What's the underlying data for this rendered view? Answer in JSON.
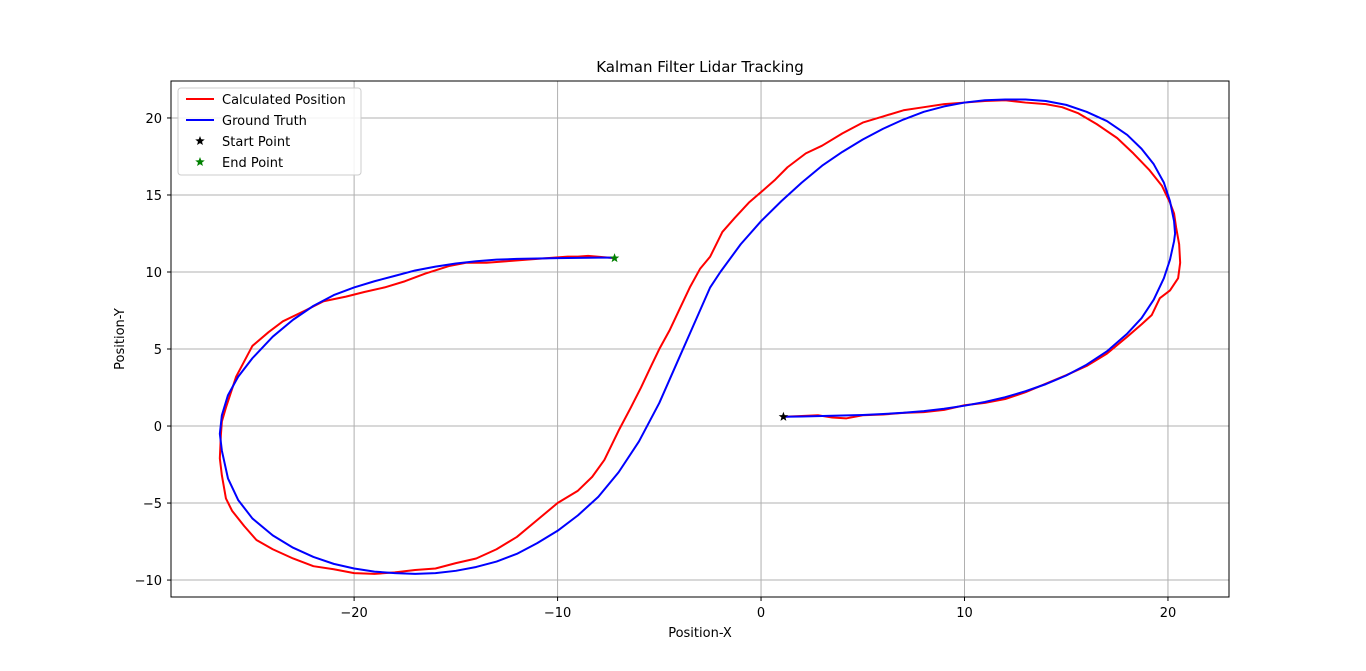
{
  "chart_data": {
    "type": "line",
    "title": "Kalman Filter Lidar Tracking",
    "xlabel": "Position-X",
    "ylabel": "Position-Y",
    "xlim": [
      -29,
      23
    ],
    "ylim": [
      -11.1,
      22.4
    ],
    "xticks": [
      -20,
      -10,
      0,
      10,
      20
    ],
    "yticks": [
      -10,
      -5,
      0,
      5,
      10,
      15,
      20
    ],
    "grid": true,
    "legend_position": "upper-left",
    "series": [
      {
        "name": "Calculated Position",
        "color": "#ff0000",
        "style": "line",
        "x": [
          1.1,
          2.0,
          2.8,
          3.5,
          4.2,
          5.0,
          6.0,
          7.0,
          8.0,
          9.0,
          10.0,
          11.0,
          12.0,
          13.0,
          14.0,
          15.0,
          16.0,
          17.0,
          18.0,
          18.7,
          19.2,
          19.6,
          20.1,
          20.5,
          20.6,
          20.55,
          20.4,
          20.3,
          20.1,
          19.7,
          19.1,
          18.3,
          17.5,
          16.5,
          15.6,
          14.8,
          14.0,
          13.0,
          12.0,
          11.0,
          10.0,
          9.0,
          8.0,
          7.0,
          6.0,
          5.0,
          4.0,
          3.0,
          2.2,
          1.3,
          0.7,
          0.1,
          -0.6,
          -1.3,
          -1.9,
          -2.5,
          -3.0,
          -3.5,
          -4.0,
          -4.5,
          -5.0,
          -5.4,
          -5.9,
          -6.4,
          -7.0,
          -7.7,
          -8.3,
          -9.0,
          -10.0,
          -11.0,
          -12.0,
          -13.0,
          -14.0,
          -15.0,
          -16.0,
          -17.0,
          -18.0,
          -19.0,
          -20.0,
          -21.0,
          -22.0,
          -23.0,
          -24.0,
          -24.8,
          -25.4,
          -26.0,
          -26.3,
          -26.5,
          -26.6,
          -26.55,
          -26.5,
          -26.3,
          -25.8,
          -25.4,
          -25.0,
          -24.2,
          -23.5,
          -22.4,
          -21.5,
          -20.4,
          -19.5,
          -18.5,
          -17.5,
          -16.5,
          -15.3,
          -14.5,
          -13.5,
          -12.5,
          -11.5,
          -10.5,
          -9.5,
          -9.0,
          -8.5,
          -7.2
        ],
        "y": [
          0.6,
          0.65,
          0.7,
          0.55,
          0.5,
          0.7,
          0.75,
          0.85,
          0.9,
          1.05,
          1.35,
          1.5,
          1.75,
          2.2,
          2.75,
          3.3,
          3.9,
          4.7,
          5.8,
          6.6,
          7.2,
          8.3,
          8.8,
          9.6,
          10.6,
          11.8,
          12.9,
          13.8,
          14.5,
          15.6,
          16.6,
          17.7,
          18.7,
          19.6,
          20.3,
          20.7,
          20.9,
          21.0,
          21.15,
          21.1,
          21.0,
          20.9,
          20.7,
          20.5,
          20.1,
          19.7,
          19.0,
          18.2,
          17.7,
          16.8,
          16.0,
          15.3,
          14.5,
          13.5,
          12.6,
          11.0,
          10.2,
          9.0,
          7.6,
          6.2,
          5.0,
          3.9,
          2.5,
          1.2,
          -0.3,
          -2.2,
          -3.3,
          -4.2,
          -5.0,
          -6.1,
          -7.2,
          -8.0,
          -8.6,
          -8.9,
          -9.25,
          -9.35,
          -9.5,
          -9.6,
          -9.55,
          -9.3,
          -9.1,
          -8.6,
          -8.0,
          -7.4,
          -6.5,
          -5.5,
          -4.7,
          -3.2,
          -2.1,
          -0.6,
          0.3,
          1.2,
          3.2,
          4.2,
          5.2,
          6.1,
          6.8,
          7.5,
          8.1,
          8.4,
          8.7,
          9.0,
          9.4,
          9.9,
          10.4,
          10.6,
          10.6,
          10.7,
          10.8,
          10.9,
          11.0,
          11.0,
          11.05,
          10.9
        ]
      },
      {
        "name": "Ground Truth",
        "color": "#0000ff",
        "style": "line",
        "x": [
          1.1,
          2.0,
          3.0,
          4.0,
          5.0,
          6.0,
          7.0,
          8.0,
          9.0,
          10.0,
          11.0,
          12.0,
          13.0,
          14.0,
          15.0,
          16.0,
          17.0,
          18.0,
          18.7,
          19.3,
          19.8,
          20.1,
          20.3,
          20.35,
          20.3,
          20.1,
          19.8,
          19.3,
          18.7,
          18.0,
          17.0,
          16.0,
          15.0,
          14.0,
          13.0,
          12.0,
          11.0,
          10.0,
          9.0,
          8.0,
          7.0,
          6.0,
          5.0,
          4.0,
          3.0,
          2.0,
          1.0,
          0.0,
          -1.0,
          -2.0,
          -2.5,
          -3.0,
          -3.5,
          -4.0,
          -4.5,
          -5.0,
          -6.0,
          -7.0,
          -8.0,
          -9.0,
          -10.0,
          -11.0,
          -12.0,
          -13.0,
          -14.0,
          -15.0,
          -16.0,
          -17.0,
          -18.0,
          -19.0,
          -20.0,
          -21.0,
          -22.0,
          -23.0,
          -24.0,
          -25.0,
          -25.7,
          -26.2,
          -26.5,
          -26.6,
          -26.5,
          -26.2,
          -25.7,
          -25.0,
          -24.0,
          -23.0,
          -22.0,
          -21.0,
          -20.0,
          -19.0,
          -18.0,
          -17.0,
          -16.0,
          -15.0,
          -14.0,
          -13.0,
          -12.0,
          -11.0,
          -10.0,
          -9.0,
          -8.0,
          -7.2
        ],
        "y": [
          0.6,
          0.62,
          0.65,
          0.68,
          0.72,
          0.78,
          0.86,
          0.97,
          1.12,
          1.32,
          1.56,
          1.87,
          2.26,
          2.72,
          3.28,
          3.98,
          4.85,
          6.0,
          7.0,
          8.2,
          9.6,
          10.8,
          12.0,
          12.5,
          13.3,
          14.6,
          15.8,
          17.0,
          18.0,
          18.9,
          19.8,
          20.4,
          20.85,
          21.1,
          21.2,
          21.2,
          21.15,
          21.0,
          20.75,
          20.4,
          19.9,
          19.3,
          18.6,
          17.8,
          16.9,
          15.8,
          14.6,
          13.3,
          11.8,
          10.0,
          9.0,
          7.5,
          6.0,
          4.5,
          3.0,
          1.5,
          -1.0,
          -3.0,
          -4.6,
          -5.8,
          -6.8,
          -7.6,
          -8.3,
          -8.8,
          -9.15,
          -9.4,
          -9.55,
          -9.6,
          -9.55,
          -9.45,
          -9.25,
          -8.95,
          -8.5,
          -7.9,
          -7.1,
          -6.0,
          -4.8,
          -3.4,
          -1.6,
          -0.5,
          0.7,
          2.0,
          3.2,
          4.4,
          5.8,
          6.9,
          7.8,
          8.5,
          9.0,
          9.4,
          9.75,
          10.1,
          10.35,
          10.55,
          10.7,
          10.8,
          10.85,
          10.88,
          10.9,
          10.92,
          10.93,
          10.93
        ]
      },
      {
        "name": "Start Point",
        "color": "#000000",
        "style": "marker-star",
        "x": [
          1.1
        ],
        "y": [
          0.6
        ]
      },
      {
        "name": "End Point",
        "color": "#008000",
        "style": "marker-star",
        "x": [
          -7.2
        ],
        "y": [
          10.9
        ]
      }
    ]
  }
}
